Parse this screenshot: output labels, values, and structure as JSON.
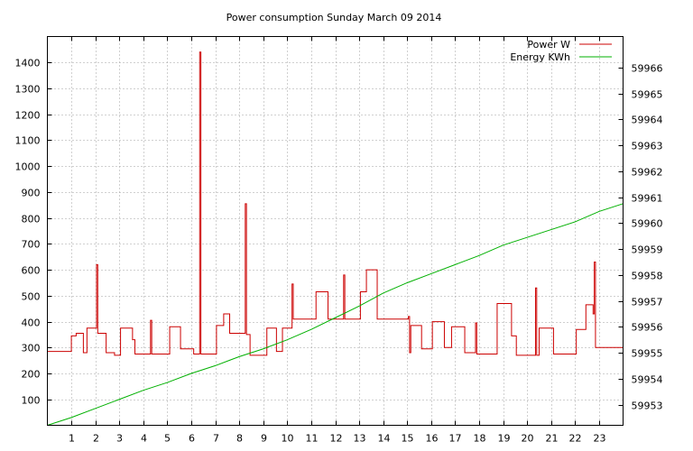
{
  "chart_data": {
    "type": "line",
    "title": "Power consumption Sunday March 09 2014",
    "xlabel": "",
    "ylabel": "",
    "y2label": "",
    "xlim": [
      0,
      24
    ],
    "ylim": [
      0,
      1500
    ],
    "y2lim": [
      59952.2,
      59967.2
    ],
    "x_ticks": [
      1,
      2,
      3,
      4,
      5,
      6,
      7,
      8,
      9,
      10,
      11,
      12,
      13,
      14,
      15,
      16,
      17,
      18,
      19,
      20,
      21,
      22,
      23
    ],
    "y_ticks": [
      100,
      200,
      300,
      400,
      500,
      600,
      700,
      800,
      900,
      1000,
      1100,
      1200,
      1300,
      1400
    ],
    "y2_ticks": [
      59953,
      59954,
      59955,
      59956,
      59957,
      59958,
      59959,
      59960,
      59961,
      59962,
      59963,
      59964,
      59965,
      59966
    ],
    "grid": true,
    "legend_position": "top-right",
    "series": [
      {
        "name": "Power W",
        "axis": "left",
        "color": "#cc0000",
        "points": [
          [
            0,
            285
          ],
          [
            1,
            285
          ],
          [
            1,
            345
          ],
          [
            1.2,
            345
          ],
          [
            1.2,
            355
          ],
          [
            1.5,
            355
          ],
          [
            1.5,
            280
          ],
          [
            1.65,
            280
          ],
          [
            1.65,
            375
          ],
          [
            2.05,
            375
          ],
          [
            2.05,
            620
          ],
          [
            2.1,
            620
          ],
          [
            2.1,
            355
          ],
          [
            2.45,
            355
          ],
          [
            2.45,
            280
          ],
          [
            2.8,
            280
          ],
          [
            2.8,
            270
          ],
          [
            3.05,
            270
          ],
          [
            3.05,
            375
          ],
          [
            3.55,
            375
          ],
          [
            3.55,
            330
          ],
          [
            3.65,
            330
          ],
          [
            3.65,
            275
          ],
          [
            4.3,
            275
          ],
          [
            4.3,
            405
          ],
          [
            4.35,
            405
          ],
          [
            4.35,
            275
          ],
          [
            5.1,
            275
          ],
          [
            5.1,
            380
          ],
          [
            5.55,
            380
          ],
          [
            5.55,
            295
          ],
          [
            6.1,
            295
          ],
          [
            6.1,
            275
          ],
          [
            6.35,
            275
          ],
          [
            6.35,
            1440
          ],
          [
            6.4,
            1440
          ],
          [
            6.4,
            275
          ],
          [
            7.05,
            275
          ],
          [
            7.05,
            385
          ],
          [
            7.35,
            385
          ],
          [
            7.35,
            430
          ],
          [
            7.6,
            430
          ],
          [
            7.6,
            355
          ],
          [
            8.25,
            355
          ],
          [
            8.25,
            855
          ],
          [
            8.3,
            855
          ],
          [
            8.3,
            350
          ],
          [
            8.45,
            350
          ],
          [
            8.45,
            270
          ],
          [
            9.15,
            270
          ],
          [
            9.15,
            375
          ],
          [
            9.55,
            375
          ],
          [
            9.55,
            285
          ],
          [
            9.8,
            285
          ],
          [
            9.8,
            375
          ],
          [
            10.2,
            375
          ],
          [
            10.2,
            545
          ],
          [
            10.25,
            545
          ],
          [
            10.25,
            410
          ],
          [
            11.2,
            410
          ],
          [
            11.2,
            515
          ],
          [
            11.7,
            515
          ],
          [
            11.7,
            410
          ],
          [
            12.35,
            410
          ],
          [
            12.35,
            580
          ],
          [
            12.4,
            580
          ],
          [
            12.4,
            410
          ],
          [
            13.05,
            410
          ],
          [
            13.05,
            515
          ],
          [
            13.3,
            515
          ],
          [
            13.3,
            600
          ],
          [
            13.75,
            600
          ],
          [
            13.75,
            410
          ],
          [
            15.05,
            410
          ],
          [
            15.05,
            420
          ],
          [
            15.1,
            420
          ],
          [
            15.1,
            280
          ],
          [
            15.15,
            280
          ],
          [
            15.15,
            385
          ],
          [
            15.6,
            385
          ],
          [
            15.6,
            295
          ],
          [
            16.05,
            295
          ],
          [
            16.05,
            400
          ],
          [
            16.55,
            400
          ],
          [
            16.55,
            300
          ],
          [
            16.85,
            300
          ],
          [
            16.85,
            380
          ],
          [
            17.4,
            380
          ],
          [
            17.4,
            280
          ],
          [
            17.85,
            280
          ],
          [
            17.85,
            395
          ],
          [
            17.9,
            395
          ],
          [
            17.9,
            275
          ],
          [
            18.75,
            275
          ],
          [
            18.75,
            470
          ],
          [
            19.35,
            470
          ],
          [
            19.35,
            345
          ],
          [
            19.55,
            345
          ],
          [
            19.55,
            270
          ],
          [
            20.35,
            270
          ],
          [
            20.35,
            530
          ],
          [
            20.4,
            530
          ],
          [
            20.4,
            270
          ],
          [
            20.5,
            270
          ],
          [
            20.5,
            375
          ],
          [
            21.1,
            375
          ],
          [
            21.1,
            275
          ],
          [
            22.05,
            275
          ],
          [
            22.05,
            370
          ],
          [
            22.45,
            370
          ],
          [
            22.45,
            465
          ],
          [
            22.75,
            465
          ],
          [
            22.75,
            430
          ],
          [
            22.8,
            430
          ],
          [
            22.8,
            630
          ],
          [
            22.85,
            630
          ],
          [
            22.85,
            300
          ],
          [
            24,
            300
          ]
        ]
      },
      {
        "name": "Energy KWh",
        "axis": "right",
        "color": "#00b000",
        "points": [
          [
            0,
            59952.2
          ],
          [
            1,
            59952.5
          ],
          [
            2,
            59952.85
          ],
          [
            3,
            59953.2
          ],
          [
            4,
            59953.55
          ],
          [
            5,
            59953.85
          ],
          [
            6,
            59954.2
          ],
          [
            7,
            59954.5
          ],
          [
            8,
            59954.85
          ],
          [
            9,
            59955.15
          ],
          [
            10,
            59955.5
          ],
          [
            11,
            59955.9
          ],
          [
            12,
            59956.35
          ],
          [
            13,
            59956.8
          ],
          [
            14,
            59957.3
          ],
          [
            15,
            59957.7
          ],
          [
            16,
            59958.05
          ],
          [
            17,
            59958.4
          ],
          [
            18,
            59958.75
          ],
          [
            19,
            59959.15
          ],
          [
            20,
            59959.45
          ],
          [
            21,
            59959.75
          ],
          [
            22,
            59960.05
          ],
          [
            23,
            59960.45
          ],
          [
            24,
            59960.75
          ]
        ]
      }
    ]
  }
}
